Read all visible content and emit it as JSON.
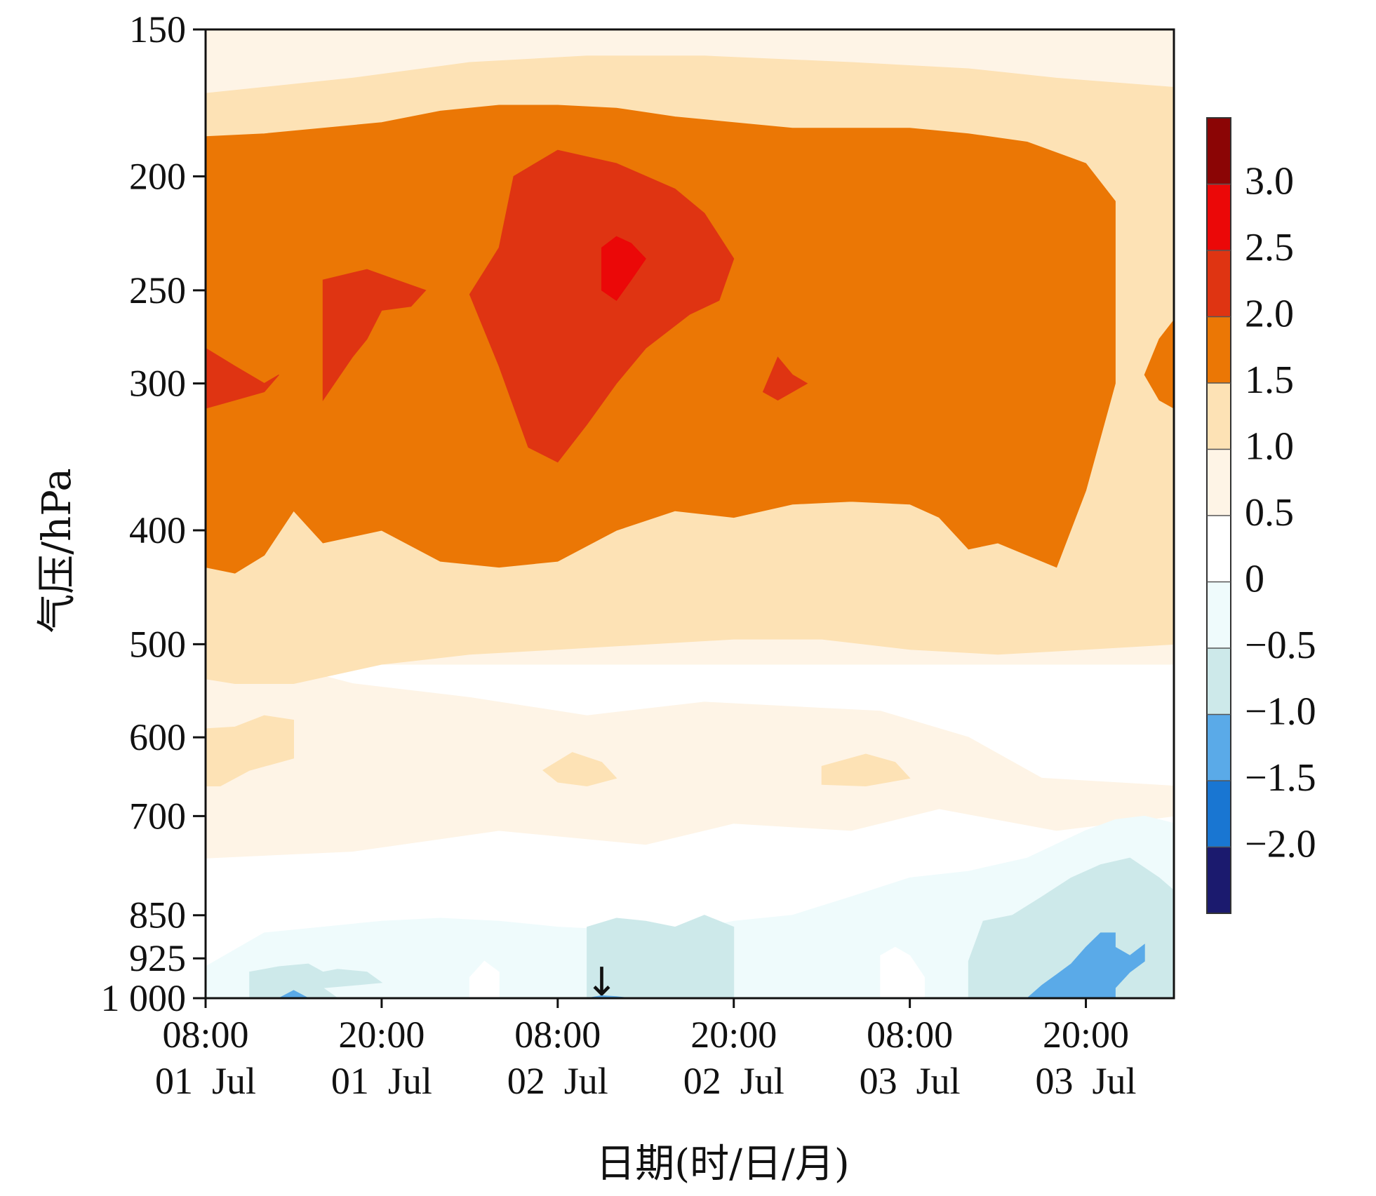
{
  "chart_data": {
    "type": "heatmap",
    "title": "",
    "xlabel": "日期(时/日/月)",
    "ylabel": "气压/hPa",
    "y_scale": "log",
    "y_reversed": true,
    "ylim": [
      1000,
      150
    ],
    "y_ticks": [
      150,
      200,
      250,
      300,
      400,
      500,
      600,
      700,
      850,
      925,
      1000
    ],
    "y_tick_labels": [
      "150",
      "200",
      "250",
      "300",
      "400",
      "500",
      "600",
      "700",
      "850",
      "925",
      "1 000"
    ],
    "x_ticks": [
      {
        "time": "08:00",
        "date": "01  Jul",
        "hour": 0
      },
      {
        "time": "20:00",
        "date": "01  Jul",
        "hour": 12
      },
      {
        "time": "08:00",
        "date": "02  Jul",
        "hour": 24
      },
      {
        "time": "20:00",
        "date": "02  Jul",
        "hour": 36
      },
      {
        "time": "08:00",
        "date": "03  Jul",
        "hour": 48
      },
      {
        "time": "20:00",
        "date": "03  Jul",
        "hour": 60
      }
    ],
    "xlim_hours": [
      0,
      66
    ],
    "annotation": {
      "symbol": "↓",
      "hour": 27,
      "pressure": 1000
    },
    "colorbar": {
      "levels": [
        -2.5,
        -2.0,
        -1.5,
        -1.0,
        -0.5,
        0,
        0.5,
        1.0,
        1.5,
        2.0,
        2.5,
        3.0,
        3.5
      ],
      "labels": [
        "3.0",
        "2.5",
        "2.0",
        "1.5",
        "1.0",
        "0.5",
        "0",
        "−0.5",
        "−1.0",
        "−1.5",
        "−2.0"
      ],
      "colors": [
        "#1b1a6e",
        "#1976d2",
        "#5aaae8",
        "#cde9ea",
        "#effbfc",
        "#ffffff",
        "#fef4e6",
        "#fde2b5",
        "#eb7705",
        "#df3412",
        "#eb0808",
        "#8b0505"
      ]
    },
    "layers": [
      {
        "level": "0.5-1.0",
        "color": "#fef4e6",
        "points": [
          [
            0,
            150
          ],
          [
            66,
            150
          ],
          [
            66,
            520
          ],
          [
            0,
            520
          ]
        ]
      },
      {
        "level": "0.5-1.0",
        "color": "#fef4e6",
        "points": [
          [
            0,
            520
          ],
          [
            5,
            520
          ],
          [
            10,
            540
          ],
          [
            18,
            555
          ],
          [
            26,
            575
          ],
          [
            34,
            560
          ],
          [
            40,
            565
          ],
          [
            46,
            570
          ],
          [
            52,
            600
          ],
          [
            57,
            650
          ],
          [
            66,
            660
          ],
          [
            66,
            700
          ],
          [
            58,
            720
          ],
          [
            50,
            690
          ],
          [
            44,
            720
          ],
          [
            36,
            710
          ],
          [
            30,
            740
          ],
          [
            20,
            720
          ],
          [
            10,
            750
          ],
          [
            0,
            760
          ]
        ]
      },
      {
        "level": "1.0-1.5",
        "color": "#fde2b5",
        "points": [
          [
            0,
            170
          ],
          [
            10,
            165
          ],
          [
            18,
            160
          ],
          [
            26,
            158
          ],
          [
            34,
            158
          ],
          [
            44,
            160
          ],
          [
            52,
            162
          ],
          [
            58,
            165
          ],
          [
            66,
            168
          ],
          [
            66,
            500
          ],
          [
            60,
            505
          ],
          [
            54,
            510
          ],
          [
            48,
            505
          ],
          [
            42,
            495
          ],
          [
            36,
            495
          ],
          [
            30,
            500
          ],
          [
            24,
            505
          ],
          [
            18,
            510
          ],
          [
            12,
            520
          ],
          [
            6,
            540
          ],
          [
            2,
            540
          ],
          [
            0,
            535
          ]
        ]
      },
      {
        "level": "1.0-1.5",
        "color": "#fde2b5",
        "points": [
          [
            0,
            590
          ],
          [
            2,
            588
          ],
          [
            4,
            575
          ],
          [
            6,
            580
          ],
          [
            6,
            625
          ],
          [
            3,
            640
          ],
          [
            1,
            660
          ],
          [
            0,
            660
          ]
        ]
      },
      {
        "level": "1.0-1.5",
        "color": "#fde2b5",
        "points": [
          [
            23,
            640
          ],
          [
            25,
            618
          ],
          [
            27,
            630
          ],
          [
            28,
            650
          ],
          [
            26,
            660
          ],
          [
            24,
            655
          ]
        ]
      },
      {
        "level": "1.0-1.5",
        "color": "#fde2b5",
        "points": [
          [
            42,
            635
          ],
          [
            45,
            620
          ],
          [
            47,
            630
          ],
          [
            48,
            650
          ],
          [
            45,
            660
          ],
          [
            42,
            658
          ]
        ]
      },
      {
        "level": "1.5-2.0",
        "color": "#eb7705",
        "points": [
          [
            0,
            185
          ],
          [
            4,
            184
          ],
          [
            8,
            182
          ],
          [
            12,
            180
          ],
          [
            16,
            176
          ],
          [
            20,
            174
          ],
          [
            24,
            174
          ],
          [
            28,
            175
          ],
          [
            32,
            178
          ],
          [
            36,
            180
          ],
          [
            40,
            182
          ],
          [
            44,
            182
          ],
          [
            48,
            182
          ],
          [
            52,
            184
          ],
          [
            56,
            187
          ],
          [
            60,
            195
          ],
          [
            62,
            210
          ],
          [
            62,
            300
          ],
          [
            60,
            370
          ],
          [
            58,
            430
          ],
          [
            54,
            410
          ],
          [
            52,
            415
          ],
          [
            50,
            390
          ],
          [
            48,
            380
          ],
          [
            44,
            378
          ],
          [
            40,
            380
          ],
          [
            36,
            390
          ],
          [
            32,
            385
          ],
          [
            28,
            400
          ],
          [
            24,
            425
          ],
          [
            20,
            430
          ],
          [
            16,
            425
          ],
          [
            12,
            400
          ],
          [
            8,
            410
          ],
          [
            6,
            385
          ],
          [
            4,
            420
          ],
          [
            2,
            435
          ],
          [
            0,
            430
          ]
        ]
      },
      {
        "level": "1.5-2.0",
        "color": "#eb7705",
        "points": [
          [
            66,
            265
          ],
          [
            65,
            275
          ],
          [
            64,
            295
          ],
          [
            65,
            310
          ],
          [
            66,
            315
          ]
        ]
      },
      {
        "level": "2.0-2.5",
        "color": "#df3412",
        "points": [
          [
            0,
            280
          ],
          [
            2,
            290
          ],
          [
            4,
            300
          ],
          [
            5,
            295
          ],
          [
            4,
            305
          ],
          [
            2,
            310
          ],
          [
            0,
            315
          ]
        ]
      },
      {
        "level": "2.0-2.5",
        "color": "#df3412",
        "points": [
          [
            8,
            245
          ],
          [
            11,
            240
          ],
          [
            13,
            245
          ],
          [
            15,
            250
          ],
          [
            14,
            258
          ],
          [
            12,
            260
          ],
          [
            11,
            275
          ],
          [
            10,
            285
          ],
          [
            8,
            310
          ],
          [
            8,
            280
          ]
        ]
      },
      {
        "level": "2.0-2.5",
        "color": "#df3412",
        "points": [
          [
            18,
            252
          ],
          [
            20,
            230
          ],
          [
            21,
            200
          ],
          [
            24,
            190
          ],
          [
            28,
            195
          ],
          [
            32,
            205
          ],
          [
            34,
            215
          ],
          [
            36,
            235
          ],
          [
            35,
            255
          ],
          [
            33,
            262
          ],
          [
            30,
            280
          ],
          [
            28,
            300
          ],
          [
            26,
            325
          ],
          [
            24,
            350
          ],
          [
            22,
            340
          ],
          [
            20,
            290
          ]
        ]
      },
      {
        "level": "2.0-2.5",
        "color": "#df3412",
        "points": [
          [
            39,
            285
          ],
          [
            40,
            295
          ],
          [
            41,
            300
          ],
          [
            40,
            305
          ],
          [
            39,
            310
          ],
          [
            38,
            305
          ]
        ]
      },
      {
        "level": "2.5-3.0",
        "color": "#eb0808",
        "points": [
          [
            27,
            230
          ],
          [
            28,
            225
          ],
          [
            29,
            228
          ],
          [
            30,
            235
          ],
          [
            29,
            245
          ],
          [
            28,
            255
          ],
          [
            27,
            250
          ]
        ]
      },
      {
        "level": "-1.0--0.5",
        "color": "#effbfc",
        "points": [
          [
            0,
            940
          ],
          [
            4,
            880
          ],
          [
            8,
            870
          ],
          [
            12,
            860
          ],
          [
            16,
            855
          ],
          [
            20,
            860
          ],
          [
            24,
            870
          ],
          [
            28,
            875
          ],
          [
            32,
            880
          ],
          [
            36,
            860
          ],
          [
            40,
            850
          ],
          [
            44,
            820
          ],
          [
            48,
            790
          ],
          [
            52,
            780
          ],
          [
            56,
            760
          ],
          [
            60,
            720
          ],
          [
            62,
            705
          ],
          [
            64,
            700
          ],
          [
            66,
            710
          ],
          [
            66,
            1000
          ],
          [
            0,
            1000
          ]
        ]
      },
      {
        "level": "0-0.5",
        "color": "#ffffff",
        "points": [
          [
            46,
            1000
          ],
          [
            46,
            920
          ],
          [
            47,
            905
          ],
          [
            48,
            920
          ],
          [
            49,
            960
          ],
          [
            49,
            1000
          ]
        ]
      },
      {
        "level": "0-0.5",
        "color": "#ffffff",
        "points": [
          [
            18,
            1000
          ],
          [
            18,
            960
          ],
          [
            19,
            930
          ],
          [
            20,
            950
          ],
          [
            20,
            1000
          ]
        ]
      },
      {
        "level": "-1.5--1.0",
        "color": "#cde9ea",
        "points": [
          [
            3,
            1000
          ],
          [
            3,
            950
          ],
          [
            5,
            940
          ],
          [
            7,
            935
          ],
          [
            8,
            950
          ],
          [
            9,
            945
          ],
          [
            11,
            950
          ],
          [
            12,
            970
          ],
          [
            10,
            975
          ],
          [
            8,
            980
          ],
          [
            9,
            1000
          ]
        ]
      },
      {
        "level": "-1.5--1.0",
        "color": "#cde9ea",
        "points": [
          [
            26,
            1000
          ],
          [
            26,
            870
          ],
          [
            28,
            855
          ],
          [
            30,
            860
          ],
          [
            32,
            870
          ],
          [
            34,
            850
          ],
          [
            36,
            870
          ],
          [
            36,
            1000
          ]
        ]
      },
      {
        "level": "-1.5--1.0",
        "color": "#cde9ea",
        "points": [
          [
            52,
            1000
          ],
          [
            52,
            930
          ],
          [
            53,
            860
          ],
          [
            55,
            850
          ],
          [
            57,
            820
          ],
          [
            59,
            790
          ],
          [
            61,
            770
          ],
          [
            63,
            760
          ],
          [
            65,
            790
          ],
          [
            66,
            810
          ],
          [
            66,
            1000
          ]
        ]
      },
      {
        "level": "-2.0--1.5",
        "color": "#5aaae8",
        "points": [
          [
            5,
            1000
          ],
          [
            6,
            985
          ],
          [
            7,
            1000
          ]
        ]
      },
      {
        "level": "-2.0--1.5",
        "color": "#5aaae8",
        "points": [
          [
            26,
            1000
          ],
          [
            27,
            995
          ],
          [
            28,
            997
          ],
          [
            29,
            1000
          ]
        ]
      },
      {
        "level": "-2.0--1.5",
        "color": "#5aaae8",
        "points": [
          [
            56,
            1000
          ],
          [
            57,
            975
          ],
          [
            58,
            955
          ],
          [
            59,
            935
          ],
          [
            60,
            905
          ],
          [
            61,
            880
          ],
          [
            62,
            880
          ],
          [
            62,
            905
          ],
          [
            63,
            920
          ],
          [
            64,
            900
          ],
          [
            64,
            930
          ],
          [
            63,
            950
          ],
          [
            62,
            980
          ],
          [
            62,
            1000
          ]
        ]
      }
    ]
  }
}
